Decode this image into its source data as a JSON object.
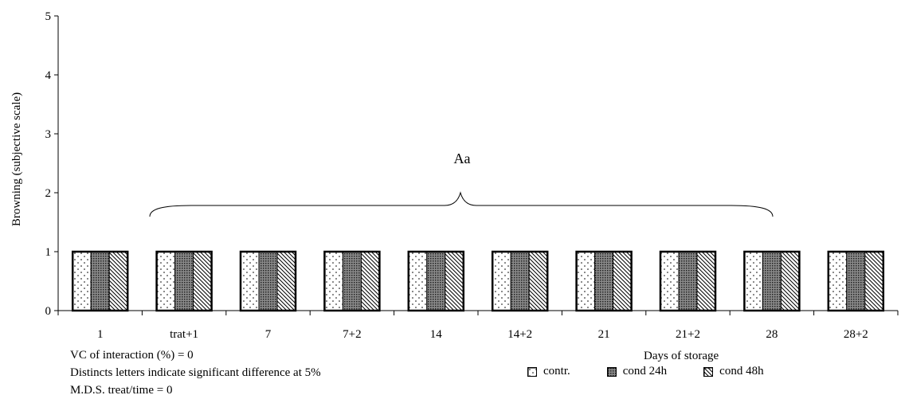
{
  "chart_data": {
    "type": "bar",
    "ylabel": "Browning (subjective scale)",
    "xlabel": "Days of storage",
    "ylim": [
      0,
      5
    ],
    "yticks": [
      "0",
      "1",
      "2",
      "3",
      "4",
      "5"
    ],
    "categories": [
      "1",
      "trat+1",
      "7",
      "7+2",
      "14",
      "14+2",
      "21",
      "21+2",
      "28",
      "28+2"
    ],
    "series": [
      {
        "name": "contr.",
        "values": [
          1,
          1,
          1,
          1,
          1,
          1,
          1,
          1,
          1,
          1
        ]
      },
      {
        "name": "cond 24h",
        "values": [
          1,
          1,
          1,
          1,
          1,
          1,
          1,
          1,
          1,
          1
        ]
      },
      {
        "name": "cond 48h",
        "values": [
          1,
          1,
          1,
          1,
          1,
          1,
          1,
          1,
          1,
          1
        ]
      }
    ],
    "annotation": "Aa",
    "grid": false,
    "legend_position": "bottom-right"
  },
  "notes": {
    "vc": "VC of interaction (%) = 0",
    "letters": "Distincts letters indicate significant difference at 5%",
    "mds": "M.D.S. treat/time = 0"
  },
  "legend": {
    "contr": "contr.",
    "cond24": "cond 24h",
    "cond48": "cond 48h"
  }
}
